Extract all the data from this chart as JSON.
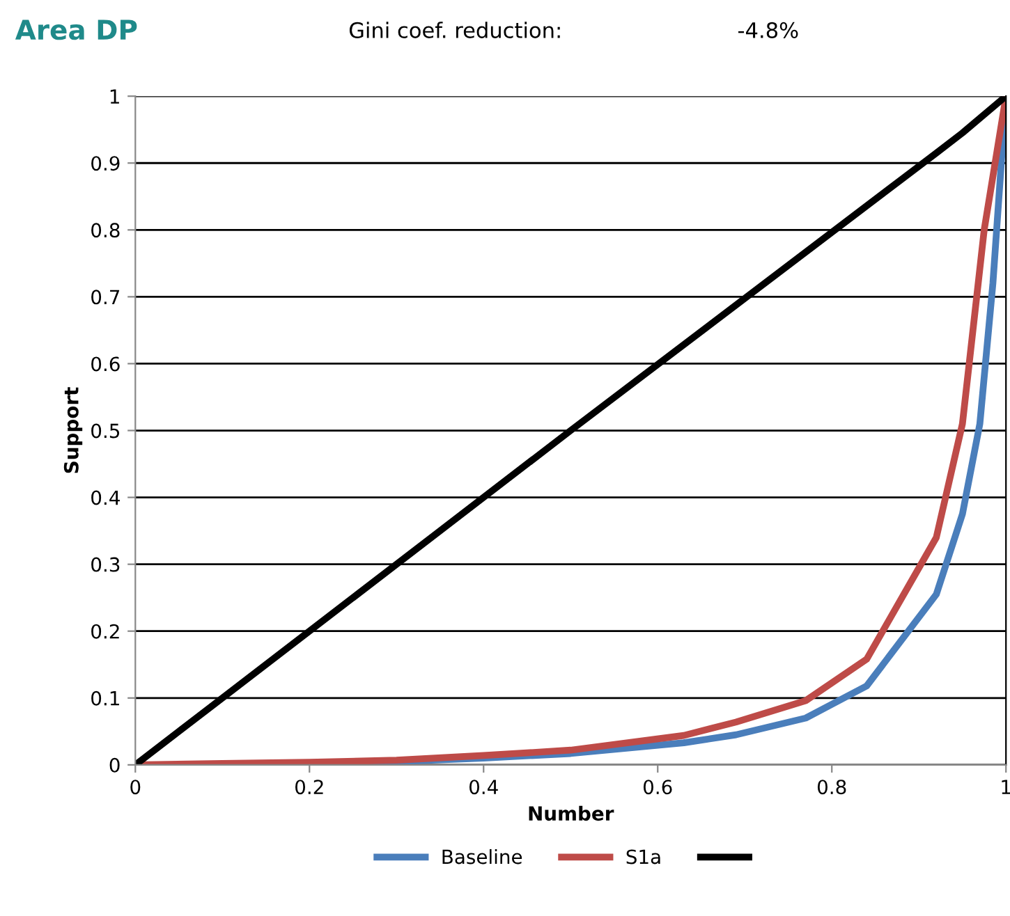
{
  "chart_data": {
    "type": "line",
    "title": "Area DP",
    "subtitle": "Gini coef. reduction:",
    "annotations": [
      "-4.8%"
    ],
    "xlabel": "Number",
    "ylabel": "Support",
    "xlim": [
      0,
      1
    ],
    "ylim": [
      0,
      1
    ],
    "xticks": [
      0,
      0.2,
      0.4,
      0.6,
      0.8,
      1
    ],
    "yticks": [
      0,
      0.1,
      0.2,
      0.3,
      0.4,
      0.5,
      0.6,
      0.7,
      0.8,
      0.9,
      1
    ],
    "grid": "y",
    "legend": "bottom",
    "marker": "none",
    "line_style": "solid",
    "series": [
      {
        "name": "Baseline",
        "color": "#4a7ebb",
        "x": [
          0.2,
          0.3,
          0.4,
          0.5,
          0.63,
          0.69,
          0.77,
          0.84,
          0.92,
          0.95,
          0.97,
          0.985,
          1
        ],
        "values": [
          0.003,
          0.005,
          0.01,
          0.017,
          0.033,
          0.045,
          0.07,
          0.118,
          0.255,
          0.375,
          0.51,
          0.72,
          1
        ]
      },
      {
        "name": "S1a",
        "color": "#be4b48",
        "x": [
          0,
          0.1,
          0.2,
          0.3,
          0.4,
          0.5,
          0.63,
          0.69,
          0.77,
          0.84,
          0.92,
          0.95,
          0.975,
          1
        ],
        "values": [
          0,
          0.002,
          0.004,
          0.007,
          0.014,
          0.022,
          0.044,
          0.064,
          0.096,
          0.158,
          0.34,
          0.51,
          0.8,
          1
        ]
      },
      {
        "color": "#000000",
        "x": [
          0,
          0.5,
          0.92,
          0.95,
          1
        ],
        "values": [
          0,
          0.5,
          0.915,
          0.945,
          1
        ]
      }
    ]
  }
}
